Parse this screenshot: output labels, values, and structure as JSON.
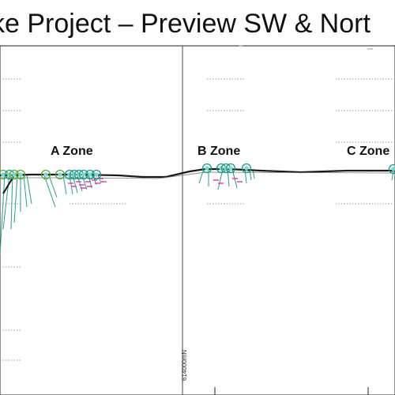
{
  "title": "ke Project – Preview SW & Nort",
  "zones": [
    {
      "name": "A Zone"
    },
    {
      "name": "B Zone"
    },
    {
      "name": "C Zone"
    }
  ],
  "grid_label": "614000mN",
  "colors": {
    "topography": "#1a1a1a",
    "hole_collar": "#1a9a8a",
    "hole_collar_fill": "#7fd6cc",
    "hole_collar_green": "#5aa83a",
    "drill_trace": "#2a9d8f",
    "assay_tick": "#d63aa8",
    "grid": "#555555",
    "grid_dotted": "#9a9a9a"
  }
}
